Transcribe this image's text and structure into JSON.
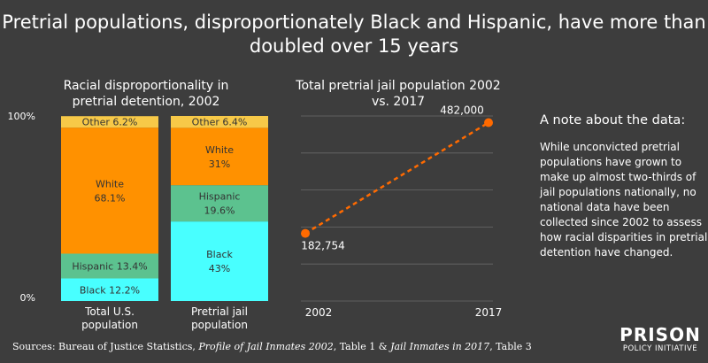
{
  "title": "Pretrial populations, disproportionately Black and Hispanic, have more than doubled over 15 years",
  "note": {
    "title": "A note about the data:",
    "body": "While unconvicted pretrial populations have grown to make up almost two-thirds of jail populations nationally, no national data have been collected since 2002 to assess how racial disparities in pretrial detention have changed."
  },
  "sources": {
    "prefix": "Sources: Bureau of Justice Statistics, ",
    "title1": "Profile of Jail Inmates 2002",
    "mid": ", Table 1 & ",
    "title2": "Jail Inmates in 2017",
    "suffix": ", Table 3"
  },
  "logo": {
    "top": "PRISON",
    "bottom": "POLICY INITIATIVE"
  },
  "colors": {
    "black": "#48ffff",
    "hispanic": "#5cc28f",
    "white": "#ff9100",
    "other": "#f7c948",
    "dot": "#ff6a00",
    "grid": "#6a6a6a"
  },
  "chart_data": [
    {
      "type": "bar",
      "stacked": true,
      "title": "Racial disproportionality in pretrial detention, 2002",
      "yticks": [
        "0%",
        "100%"
      ],
      "ylim": [
        0,
        100
      ],
      "categories": [
        "Total U.S. population",
        "Pretrial jail population"
      ],
      "series": [
        {
          "name": "Black",
          "values": [
            12.2,
            43
          ],
          "labels": [
            "Black 12.2%",
            "Black\n43%"
          ]
        },
        {
          "name": "Hispanic",
          "values": [
            13.4,
            19.6
          ],
          "labels": [
            "Hispanic 13.4%",
            "Hispanic\n19.6%"
          ]
        },
        {
          "name": "White",
          "values": [
            68.1,
            31
          ],
          "labels": [
            "White\n68.1%",
            "White\n31%"
          ]
        },
        {
          "name": "Other",
          "values": [
            6.2,
            6.4
          ],
          "labels": [
            "Other 6.2%",
            "Other 6.4%"
          ]
        }
      ]
    },
    {
      "type": "line",
      "title": "Total pretrial jail population 2002 vs. 2017",
      "x": [
        "2002",
        "2017"
      ],
      "y": [
        182754,
        482000
      ],
      "labels": [
        "182,754",
        "482,000"
      ],
      "ylim": [
        0,
        500000
      ],
      "grid": true
    }
  ]
}
